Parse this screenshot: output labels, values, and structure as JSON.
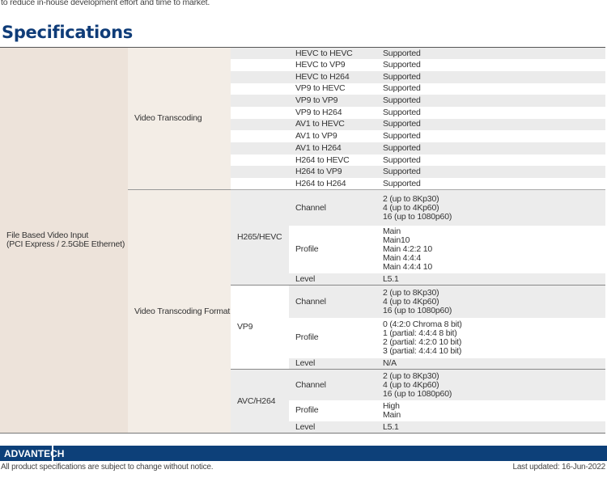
{
  "intro": "to reduce in-house development effort and time to market.",
  "heading": "Specifications",
  "category": [
    "File Based Video Input",
    "(PCI Express / 2.5GbE Ethernet)"
  ],
  "transcoding": {
    "label": "Video Transcoding",
    "rows": [
      [
        "HEVC to HEVC",
        "Supported"
      ],
      [
        "HEVC to VP9",
        "Supported"
      ],
      [
        "HEVC to H264",
        "Supported"
      ],
      [
        "VP9 to HEVC",
        "Supported"
      ],
      [
        "VP9 to VP9",
        "Supported"
      ],
      [
        "VP9 to H264",
        "Supported"
      ],
      [
        "AV1 to HEVC",
        "Supported"
      ],
      [
        "AV1 to VP9",
        "Supported"
      ],
      [
        "AV1 to H264",
        "Supported"
      ],
      [
        "H264 to HEVC",
        "Supported"
      ],
      [
        "H264 to VP9",
        "Supported"
      ],
      [
        "H264 to H264",
        "Supported"
      ]
    ]
  },
  "format": {
    "label": "Video Transcoding Format",
    "codecs": [
      {
        "name": "H265/HEVC",
        "rows": [
          {
            "k": "Channel",
            "v": [
              "2 (up to 8Kp30)",
              "4 (up to 4Kp60)",
              "16 (up to 1080p60)"
            ]
          },
          {
            "k": "Profile",
            "v": [
              "Main",
              "Main10",
              "Main 4:2:2 10",
              "Main 4:4:4",
              "Main 4:4:4 10"
            ]
          },
          {
            "k": "Level",
            "v": [
              "L5.1"
            ]
          }
        ]
      },
      {
        "name": "VP9",
        "rows": [
          {
            "k": "Channel",
            "v": [
              "2 (up to 8Kp30)",
              "4 (up to 4Kp60)",
              "16 (up to 1080p60)"
            ]
          },
          {
            "k": "Profile",
            "v": [
              "0 (4:2:0 Chroma 8 bit)",
              "1 (partial: 4:4:4 8 bit)",
              "2 (partial: 4:2:0 10 bit)",
              "3 (partial: 4:4:4 10 bit)"
            ]
          },
          {
            "k": "Level",
            "v": [
              "N/A"
            ]
          }
        ]
      },
      {
        "name": "AVC/H264",
        "rows": [
          {
            "k": "Channel",
            "v": [
              "2 (up to 8Kp30)",
              "4 (up to 4Kp60)",
              "16 (up to 1080p60)"
            ]
          },
          {
            "k": "Profile",
            "v": [
              "High",
              "Main"
            ]
          },
          {
            "k": "Level",
            "v": [
              "L5.1"
            ]
          }
        ]
      }
    ]
  },
  "footer": {
    "logo": "ADVANTECH",
    "notice": "All product specifications are subject to change without notice.",
    "updated": "Last updated: 16-Jun-2022"
  },
  "colors": {
    "brand": "#0d4079"
  }
}
